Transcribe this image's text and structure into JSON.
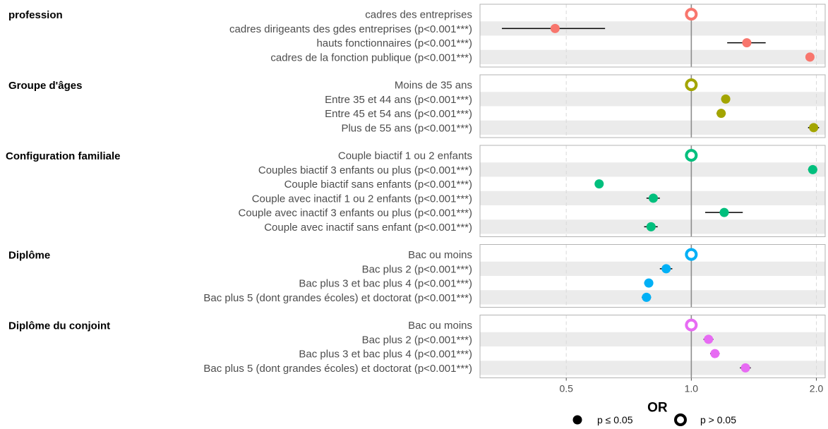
{
  "chart_data": {
    "type": "scatter",
    "subtype": "forest-plot",
    "xlabel": "OR",
    "x_scale": "log",
    "xlim": [
      0.31,
      2.1
    ],
    "x_ticks": [
      {
        "value": 0.5,
        "label": "0.5"
      },
      {
        "value": 1.0,
        "label": "1.0"
      },
      {
        "value": 2.0,
        "label": "2.0"
      }
    ],
    "reference_line": 1.0,
    "grid": "vertical dashed",
    "legend_position": "bottom",
    "legend": [
      {
        "label": "p ≤ 0.05",
        "marker": "filled"
      },
      {
        "label": "p > 0.05",
        "marker": "ring"
      }
    ],
    "groups": [
      {
        "title": "profession",
        "color": "#F8766D",
        "rows": [
          {
            "label": "cadres des entreprises",
            "or": 1.0,
            "low": null,
            "high": null,
            "significant": false
          },
          {
            "label": "cadres dirigeants des gdes entreprises (p<0.001***)",
            "or": 0.47,
            "low": 0.35,
            "high": 0.62,
            "significant": true
          },
          {
            "label": "hauts fonctionnaires (p<0.001***)",
            "or": 1.36,
            "low": 1.22,
            "high": 1.51,
            "significant": true
          },
          {
            "label": "cadres de la fonction publique (p<0.001***)",
            "or": 1.93,
            "low": 1.9,
            "high": 1.96,
            "significant": true
          }
        ]
      },
      {
        "title": "Groupe d'âges",
        "color": "#A3A500",
        "rows": [
          {
            "label": "Moins de 35 ans",
            "or": 1.0,
            "low": null,
            "high": null,
            "significant": false
          },
          {
            "label": "Entre 35 et 44 ans (p<0.001***)",
            "or": 1.21,
            "low": 1.18,
            "high": 1.24,
            "significant": true
          },
          {
            "label": "Entre 45 et 54 ans (p<0.001***)",
            "or": 1.18,
            "low": 1.15,
            "high": 1.21,
            "significant": true
          },
          {
            "label": "Plus de 55 ans (p<0.001***)",
            "or": 1.97,
            "low": 1.91,
            "high": 2.03,
            "significant": true
          }
        ]
      },
      {
        "title": "Configuration familiale",
        "color": "#00BF7D",
        "rows": [
          {
            "label": "Couple biactif 1 ou 2 enfants",
            "or": 1.0,
            "low": null,
            "high": null,
            "significant": false
          },
          {
            "label": "Couples biactif 3 enfants ou plus (p<0.001***)",
            "or": 1.96,
            "low": 1.91,
            "high": 2.01,
            "significant": true
          },
          {
            "label": "Couple biactif sans enfants (p<0.001***)",
            "or": 0.6,
            "low": 0.59,
            "high": 0.61,
            "significant": true
          },
          {
            "label": "Couple avec inactif 1 ou 2 enfants (p<0.001***)",
            "or": 0.81,
            "low": 0.78,
            "high": 0.84,
            "significant": true
          },
          {
            "label": "Couple avec inactif 3 enfants ou plus (p<0.001***)",
            "or": 1.2,
            "low": 1.08,
            "high": 1.33,
            "significant": true
          },
          {
            "label": "Couple avec inactif sans enfant (p<0.001***)",
            "or": 0.8,
            "low": 0.77,
            "high": 0.83,
            "significant": true
          }
        ]
      },
      {
        "title": "Diplôme",
        "color": "#00B0F6",
        "rows": [
          {
            "label": "Bac ou moins",
            "or": 1.0,
            "low": null,
            "high": null,
            "significant": false
          },
          {
            "label": "Bac plus 2 (p<0.001***)",
            "or": 0.87,
            "low": 0.84,
            "high": 0.9,
            "significant": true
          },
          {
            "label": "Bac plus 3 et bac plus 4 (p<0.001***)",
            "or": 0.79,
            "low": 0.77,
            "high": 0.81,
            "significant": true
          },
          {
            "label": "Bac plus 5 (dont grandes écoles) et doctorat (p<0.001***)",
            "or": 0.78,
            "low": 0.76,
            "high": 0.8,
            "significant": true
          }
        ]
      },
      {
        "title": "Diplôme du conjoint",
        "color": "#E76BF3",
        "rows": [
          {
            "label": "Bac ou moins",
            "or": 1.0,
            "low": null,
            "high": null,
            "significant": false
          },
          {
            "label": "Bac plus 2 (p<0.001***)",
            "or": 1.1,
            "low": 1.07,
            "high": 1.13,
            "significant": true
          },
          {
            "label": "Bac plus 3 et bac plus 4 (p<0.001***)",
            "or": 1.14,
            "low": 1.11,
            "high": 1.17,
            "significant": true
          },
          {
            "label": "Bac plus 5 (dont grandes écoles) et doctorat (p<0.001***)",
            "or": 1.35,
            "low": 1.31,
            "high": 1.39,
            "significant": true
          }
        ]
      }
    ]
  }
}
